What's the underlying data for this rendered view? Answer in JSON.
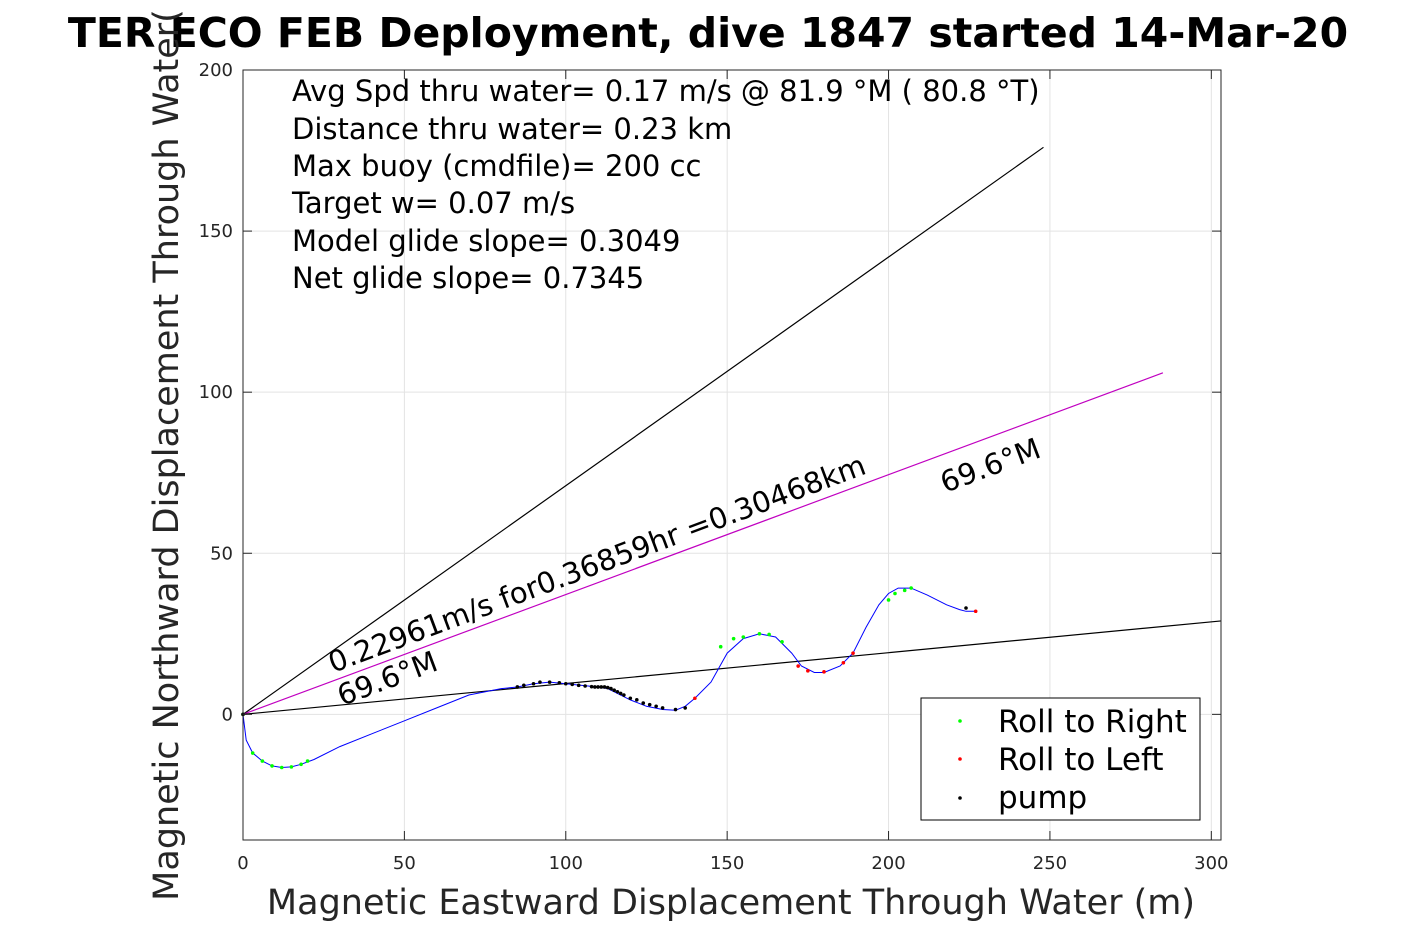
{
  "chart_data": {
    "type": "line",
    "title": "TER ECO FEB Deployment, dive 1847 started 14-Mar-20",
    "xlabel": "Magnetic Eastward Displacement Through Water (m)",
    "ylabel": "Magnetic Northward Displacement Through Water(",
    "xlim": [
      0,
      303
    ],
    "ylim": [
      -39,
      200
    ],
    "xticks": [
      0,
      50,
      100,
      150,
      200,
      250,
      300
    ],
    "yticks": [
      0,
      50,
      100,
      150,
      200
    ],
    "grid": true,
    "legend_position": "bottom-right",
    "info_lines": [
      "Avg Spd thru water=  0.17 m/s @  81.9 °M ( 80.8 °T)",
      "Distance thru water=  0.23 km",
      "Max buoy (cmdfile)= 200 cc",
      "Target w= 0.07 m/s",
      "Model glide slope= 0.3049",
      "Net glide slope= 0.7345"
    ],
    "annotations": {
      "current_speed": "0.22961m/s for0.36859hr =0.30468km",
      "heading_low": "69.6°M",
      "heading_high": "69.6°M"
    },
    "reference_lines": [
      {
        "name": "upper",
        "color": "#000000",
        "x": [
          0,
          248
        ],
        "y": [
          0,
          176
        ]
      },
      {
        "name": "current",
        "color": "#c000c0",
        "x": [
          0,
          285
        ],
        "y": [
          0,
          106
        ]
      },
      {
        "name": "lower",
        "color": "#000000",
        "x": [
          0,
          303
        ],
        "y": [
          0,
          29
        ]
      }
    ],
    "track": {
      "color": "#0000ff",
      "x": [
        0,
        1,
        3,
        6,
        9,
        12,
        15,
        18,
        22,
        30,
        40,
        50,
        60,
        70,
        80,
        85,
        90,
        95,
        100,
        105,
        110,
        113,
        115,
        120,
        125,
        130,
        134,
        137,
        140,
        145,
        150,
        155,
        160,
        165,
        170,
        173,
        177,
        180,
        185,
        189,
        193,
        197,
        200,
        203,
        207,
        212,
        218,
        222,
        224,
        227
      ],
      "y": [
        0,
        -8,
        -12,
        -14.5,
        -16,
        -16.5,
        -16.3,
        -15.5,
        -14,
        -10,
        -6,
        -2,
        2,
        6,
        8,
        8.5,
        9.5,
        10,
        9.5,
        9,
        8.5,
        8,
        7,
        4.5,
        2.5,
        1.5,
        1.3,
        2.5,
        5,
        10,
        19,
        23.5,
        25,
        24,
        19,
        15,
        13,
        13,
        15,
        19,
        27,
        34,
        37.5,
        39.2,
        39.2,
        37,
        34,
        32.5,
        32,
        32
      ]
    },
    "series": [
      {
        "name": "Roll to Right",
        "color": "#00ff00",
        "x": [
          0,
          3,
          6,
          9,
          12,
          15,
          18,
          20,
          148,
          152,
          155,
          160,
          163,
          167,
          200,
          202,
          205,
          207
        ],
        "y": [
          0,
          -12,
          -14.5,
          -16,
          -16.5,
          -16.3,
          -15.5,
          -14.5,
          21,
          23.5,
          24,
          25,
          24.8,
          22.5,
          35.5,
          37.5,
          38.5,
          39.2
        ]
      },
      {
        "name": "Roll to Left",
        "color": "#ff0000",
        "x": [
          140,
          172,
          175,
          180,
          186,
          189,
          227
        ],
        "y": [
          5,
          15,
          13.5,
          13.2,
          16,
          19,
          32
        ]
      },
      {
        "name": "pump",
        "color": "#000000",
        "x": [
          0,
          85,
          87,
          90,
          92,
          95,
          98,
          100,
          102,
          104,
          106,
          108,
          109,
          110,
          111,
          112,
          113,
          114,
          115,
          116,
          117,
          118,
          120,
          122,
          124,
          126,
          128,
          130,
          134,
          137,
          224
        ],
        "y": [
          0,
          8.5,
          9,
          9.5,
          10,
          10,
          9.8,
          9.5,
          9.3,
          9,
          8.8,
          8.6,
          8.5,
          8.5,
          8.5,
          8.5,
          8.3,
          8,
          7.5,
          7,
          6.5,
          6,
          5,
          4.5,
          3.5,
          3,
          2.5,
          2,
          1.5,
          2,
          33
        ]
      }
    ]
  }
}
